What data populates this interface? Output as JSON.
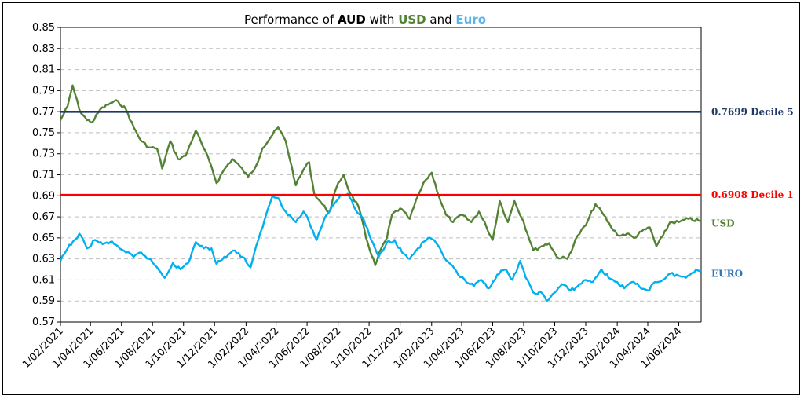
{
  "chart_data": {
    "type": "line",
    "title_parts": [
      {
        "text": "Performance of ",
        "bold": false,
        "color": "#000000"
      },
      {
        "text": "AUD",
        "bold": true,
        "color": "#000000"
      },
      {
        "text": " with ",
        "bold": false,
        "color": "#000000"
      },
      {
        "text": "USD",
        "bold": true,
        "color": "#548235"
      },
      {
        "text": " and ",
        "bold": false,
        "color": "#000000"
      },
      {
        "text": "Euro",
        "bold": true,
        "color": "#5ab4e5"
      }
    ],
    "ylim": [
      0.57,
      0.85
    ],
    "yticks": [
      "0.57",
      "0.59",
      "0.61",
      "0.63",
      "0.65",
      "0.67",
      "0.69",
      "0.71",
      "0.73",
      "0.75",
      "0.77",
      "0.79",
      "0.81",
      "0.83",
      "0.85"
    ],
    "x_start": "2021-02-01",
    "x_end": "2024-07-15",
    "xticks": [
      "1/02/2021",
      "1/04/2021",
      "1/06/2021",
      "1/08/2021",
      "1/10/2021",
      "1/12/2021",
      "1/02/2022",
      "1/04/2022",
      "1/06/2022",
      "1/08/2022",
      "1/10/2022",
      "1/12/2022",
      "1/02/2023",
      "1/04/2023",
      "1/06/2023",
      "1/08/2023",
      "1/10/2023",
      "1/12/2023",
      "1/02/2024",
      "1/04/2024",
      "1/06/2024"
    ],
    "grid": true,
    "reference_lines": [
      {
        "value": 0.7699,
        "label": "0.7699 Decile 5",
        "color": "#1f3864"
      },
      {
        "value": 0.6908,
        "label": "0.6908 Decile 1",
        "color": "#ff0000"
      }
    ],
    "series": [
      {
        "name": "USD",
        "color": "#548235",
        "points": [
          [
            "2021-02-01",
            0.762
          ],
          [
            "2021-02-15",
            0.775
          ],
          [
            "2021-02-25",
            0.795
          ],
          [
            "2021-03-10",
            0.772
          ],
          [
            "2021-03-25",
            0.762
          ],
          [
            "2021-04-05",
            0.76
          ],
          [
            "2021-04-20",
            0.772
          ],
          [
            "2021-05-10",
            0.778
          ],
          [
            "2021-05-25",
            0.78
          ],
          [
            "2021-06-10",
            0.772
          ],
          [
            "2021-06-25",
            0.755
          ],
          [
            "2021-07-10",
            0.742
          ],
          [
            "2021-07-25",
            0.736
          ],
          [
            "2021-08-10",
            0.735
          ],
          [
            "2021-08-20",
            0.716
          ],
          [
            "2021-09-05",
            0.742
          ],
          [
            "2021-09-20",
            0.725
          ],
          [
            "2021-10-05",
            0.728
          ],
          [
            "2021-10-25",
            0.752
          ],
          [
            "2021-11-10",
            0.735
          ],
          [
            "2021-11-25",
            0.718
          ],
          [
            "2021-12-05",
            0.702
          ],
          [
            "2021-12-20",
            0.715
          ],
          [
            "2022-01-05",
            0.725
          ],
          [
            "2022-01-20",
            0.718
          ],
          [
            "2022-02-05",
            0.708
          ],
          [
            "2022-02-20",
            0.718
          ],
          [
            "2022-03-05",
            0.735
          ],
          [
            "2022-03-25",
            0.748
          ],
          [
            "2022-04-05",
            0.755
          ],
          [
            "2022-04-20",
            0.742
          ],
          [
            "2022-05-10",
            0.7
          ],
          [
            "2022-05-25",
            0.715
          ],
          [
            "2022-06-05",
            0.722
          ],
          [
            "2022-06-15",
            0.692
          ],
          [
            "2022-07-01",
            0.682
          ],
          [
            "2022-07-14",
            0.674
          ],
          [
            "2022-08-01",
            0.702
          ],
          [
            "2022-08-12",
            0.71
          ],
          [
            "2022-08-25",
            0.692
          ],
          [
            "2022-09-10",
            0.68
          ],
          [
            "2022-09-25",
            0.65
          ],
          [
            "2022-10-13",
            0.624
          ],
          [
            "2022-10-25",
            0.64
          ],
          [
            "2022-11-05",
            0.65
          ],
          [
            "2022-11-15",
            0.672
          ],
          [
            "2022-12-01",
            0.678
          ],
          [
            "2022-12-20",
            0.668
          ],
          [
            "2023-01-05",
            0.69
          ],
          [
            "2023-01-20",
            0.705
          ],
          [
            "2023-02-01",
            0.712
          ],
          [
            "2023-02-15",
            0.69
          ],
          [
            "2023-03-01",
            0.672
          ],
          [
            "2023-03-15",
            0.665
          ],
          [
            "2023-04-01",
            0.672
          ],
          [
            "2023-04-20",
            0.665
          ],
          [
            "2023-05-05",
            0.675
          ],
          [
            "2023-05-20",
            0.66
          ],
          [
            "2023-06-01",
            0.648
          ],
          [
            "2023-06-15",
            0.685
          ],
          [
            "2023-07-01",
            0.665
          ],
          [
            "2023-07-14",
            0.685
          ],
          [
            "2023-08-01",
            0.665
          ],
          [
            "2023-08-20",
            0.638
          ],
          [
            "2023-09-05",
            0.642
          ],
          [
            "2023-09-20",
            0.645
          ],
          [
            "2023-10-05",
            0.632
          ],
          [
            "2023-10-26",
            0.63
          ],
          [
            "2023-11-15",
            0.652
          ],
          [
            "2023-12-01",
            0.662
          ],
          [
            "2023-12-20",
            0.682
          ],
          [
            "2024-01-05",
            0.672
          ],
          [
            "2024-01-20",
            0.66
          ],
          [
            "2024-02-05",
            0.652
          ],
          [
            "2024-02-20",
            0.654
          ],
          [
            "2024-03-05",
            0.65
          ],
          [
            "2024-03-20",
            0.656
          ],
          [
            "2024-04-05",
            0.66
          ],
          [
            "2024-04-18",
            0.642
          ],
          [
            "2024-05-01",
            0.652
          ],
          [
            "2024-05-15",
            0.665
          ],
          [
            "2024-06-01",
            0.665
          ],
          [
            "2024-06-20",
            0.668
          ],
          [
            "2024-07-15",
            0.666
          ]
        ]
      },
      {
        "name": "EURO",
        "color": "#00b0f0",
        "points": [
          [
            "2021-02-01",
            0.628
          ],
          [
            "2021-02-15",
            0.64
          ],
          [
            "2021-03-01",
            0.648
          ],
          [
            "2021-03-10",
            0.654
          ],
          [
            "2021-03-25",
            0.64
          ],
          [
            "2021-04-10",
            0.648
          ],
          [
            "2021-04-25",
            0.644
          ],
          [
            "2021-05-10",
            0.646
          ],
          [
            "2021-05-25",
            0.642
          ],
          [
            "2021-06-10",
            0.636
          ],
          [
            "2021-06-25",
            0.632
          ],
          [
            "2021-07-10",
            0.636
          ],
          [
            "2021-07-25",
            0.63
          ],
          [
            "2021-08-10",
            0.622
          ],
          [
            "2021-08-25",
            0.612
          ],
          [
            "2021-09-10",
            0.626
          ],
          [
            "2021-09-25",
            0.62
          ],
          [
            "2021-10-10",
            0.626
          ],
          [
            "2021-10-25",
            0.646
          ],
          [
            "2021-11-10",
            0.64
          ],
          [
            "2021-11-25",
            0.64
          ],
          [
            "2021-12-05",
            0.625
          ],
          [
            "2021-12-20",
            0.632
          ],
          [
            "2022-01-10",
            0.638
          ],
          [
            "2022-01-25",
            0.632
          ],
          [
            "2022-02-10",
            0.622
          ],
          [
            "2022-02-25",
            0.648
          ],
          [
            "2022-03-10",
            0.668
          ],
          [
            "2022-03-25",
            0.69
          ],
          [
            "2022-04-05",
            0.688
          ],
          [
            "2022-04-20",
            0.675
          ],
          [
            "2022-05-10",
            0.665
          ],
          [
            "2022-05-25",
            0.675
          ],
          [
            "2022-06-05",
            0.665
          ],
          [
            "2022-06-20",
            0.648
          ],
          [
            "2022-07-05",
            0.668
          ],
          [
            "2022-07-20",
            0.68
          ],
          [
            "2022-08-05",
            0.69
          ],
          [
            "2022-08-20",
            0.692
          ],
          [
            "2022-09-05",
            0.676
          ],
          [
            "2022-09-20",
            0.668
          ],
          [
            "2022-10-05",
            0.648
          ],
          [
            "2022-10-20",
            0.632
          ],
          [
            "2022-11-05",
            0.646
          ],
          [
            "2022-11-20",
            0.648
          ],
          [
            "2022-12-05",
            0.636
          ],
          [
            "2022-12-20",
            0.63
          ],
          [
            "2023-01-05",
            0.64
          ],
          [
            "2023-01-25",
            0.65
          ],
          [
            "2023-02-10",
            0.645
          ],
          [
            "2023-02-25",
            0.632
          ],
          [
            "2023-03-10",
            0.625
          ],
          [
            "2023-03-25",
            0.615
          ],
          [
            "2023-04-10",
            0.608
          ],
          [
            "2023-04-25",
            0.604
          ],
          [
            "2023-05-10",
            0.61
          ],
          [
            "2023-05-25",
            0.602
          ],
          [
            "2023-06-10",
            0.615
          ],
          [
            "2023-06-25",
            0.62
          ],
          [
            "2023-07-10",
            0.61
          ],
          [
            "2023-07-25",
            0.628
          ],
          [
            "2023-08-05",
            0.612
          ],
          [
            "2023-08-20",
            0.598
          ],
          [
            "2023-09-05",
            0.598
          ],
          [
            "2023-09-15",
            0.59
          ],
          [
            "2023-10-01",
            0.598
          ],
          [
            "2023-10-15",
            0.606
          ],
          [
            "2023-11-01",
            0.6
          ],
          [
            "2023-11-15",
            0.604
          ],
          [
            "2023-12-01",
            0.61
          ],
          [
            "2023-12-15",
            0.608
          ],
          [
            "2024-01-01",
            0.62
          ],
          [
            "2024-01-15",
            0.612
          ],
          [
            "2024-02-01",
            0.608
          ],
          [
            "2024-02-15",
            0.602
          ],
          [
            "2024-03-01",
            0.608
          ],
          [
            "2024-03-15",
            0.604
          ],
          [
            "2024-04-01",
            0.6
          ],
          [
            "2024-04-15",
            0.608
          ],
          [
            "2024-05-01",
            0.61
          ],
          [
            "2024-05-15",
            0.616
          ],
          [
            "2024-06-01",
            0.614
          ],
          [
            "2024-06-15",
            0.612
          ],
          [
            "2024-07-05",
            0.62
          ],
          [
            "2024-07-15",
            0.618
          ]
        ]
      }
    ]
  }
}
